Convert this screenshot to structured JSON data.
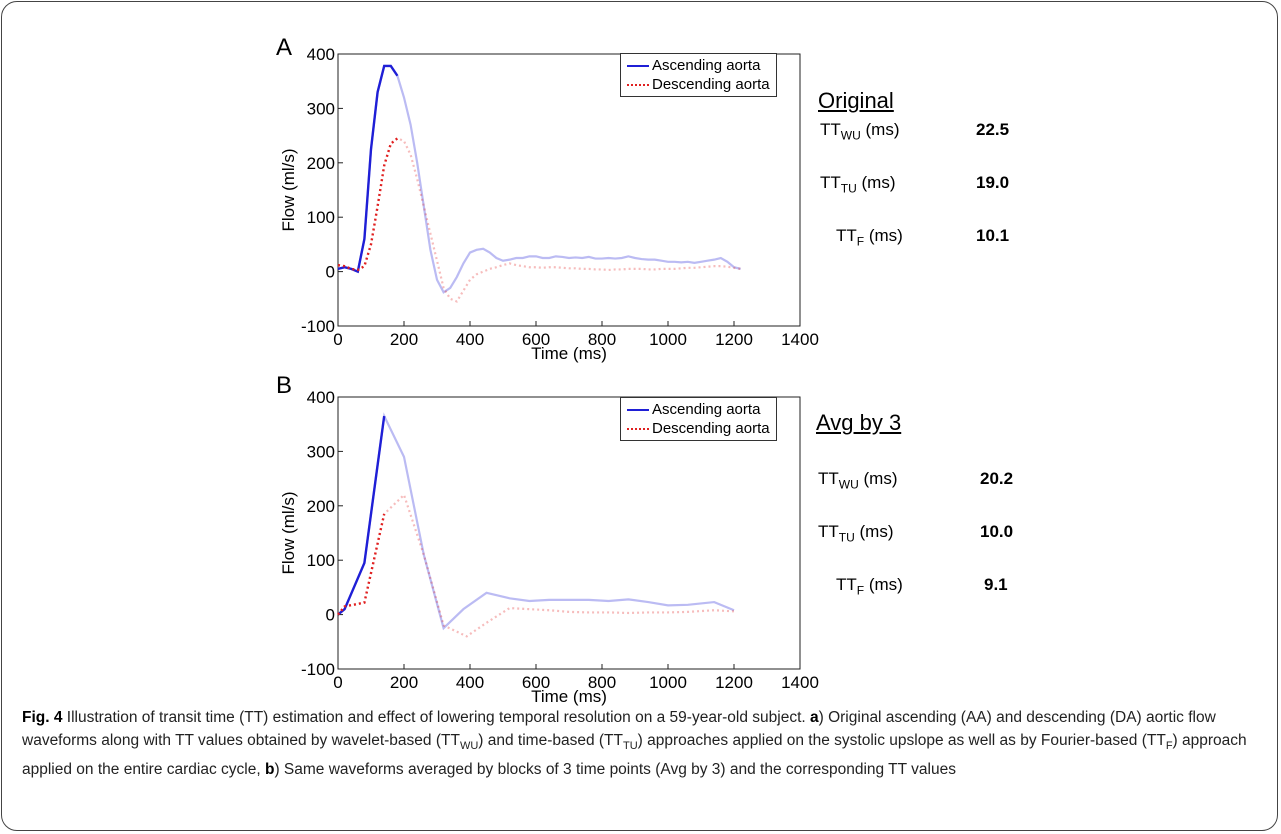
{
  "panels": [
    {
      "letter": "A",
      "heading": "Original",
      "tt": [
        {
          "base": "TT",
          "sub": "WU",
          "unit": " (ms)",
          "value": "22.5"
        },
        {
          "base": "TT",
          "sub": "TU",
          "unit": " (ms)",
          "value": "19.0"
        },
        {
          "base": "TT",
          "sub": "F",
          "unit": " (ms)",
          "value": "10.1"
        }
      ]
    },
    {
      "letter": "B",
      "heading": "Avg by 3",
      "tt": [
        {
          "base": "TT",
          "sub": "WU",
          "unit": " (ms)",
          "value": "20.2"
        },
        {
          "base": "TT",
          "sub": "TU",
          "unit": " (ms)",
          "value": "10.0"
        },
        {
          "base": "TT",
          "sub": "F",
          "unit": " (ms)",
          "value": "9.1"
        }
      ]
    }
  ],
  "chart_data": [
    {
      "type": "line",
      "xlabel": "Time (ms)",
      "ylabel": "Flow (ml/s)",
      "xlim": [
        0,
        1400
      ],
      "ylim": [
        -100,
        400
      ],
      "xticks": [
        0,
        200,
        400,
        600,
        800,
        1000,
        1200,
        1400
      ],
      "yticks": [
        -100,
        0,
        100,
        200,
        300,
        400
      ],
      "legend_position": "top-right",
      "series": [
        {
          "name": "Ascending aorta",
          "color": "#1f1fd6",
          "style": "solid",
          "highlight_until": 190,
          "x": [
            0,
            20,
            40,
            60,
            80,
            100,
            120,
            140,
            160,
            180,
            200,
            220,
            240,
            260,
            280,
            300,
            320,
            340,
            360,
            380,
            400,
            420,
            440,
            460,
            480,
            500,
            520,
            540,
            560,
            580,
            600,
            620,
            640,
            660,
            680,
            700,
            720,
            740,
            760,
            780,
            800,
            820,
            840,
            860,
            880,
            900,
            920,
            940,
            960,
            980,
            1000,
            1020,
            1040,
            1060,
            1080,
            1100,
            1120,
            1140,
            1160,
            1180,
            1200,
            1220
          ],
          "y": [
            5,
            8,
            5,
            0,
            60,
            225,
            330,
            378,
            378,
            360,
            320,
            270,
            200,
            120,
            40,
            -15,
            -38,
            -30,
            -10,
            15,
            35,
            40,
            42,
            35,
            25,
            20,
            22,
            25,
            25,
            28,
            28,
            25,
            25,
            28,
            27,
            25,
            26,
            25,
            27,
            24,
            24,
            25,
            24,
            25,
            28,
            25,
            23,
            22,
            22,
            20,
            18,
            18,
            17,
            18,
            16,
            18,
            20,
            22,
            25,
            18,
            8,
            5
          ]
        },
        {
          "name": "Descending aorta",
          "color": "#e02020",
          "style": "dotted",
          "highlight_until": 190,
          "x": [
            0,
            20,
            40,
            60,
            80,
            100,
            120,
            140,
            160,
            180,
            200,
            220,
            240,
            260,
            280,
            300,
            320,
            340,
            360,
            380,
            400,
            420,
            440,
            460,
            480,
            500,
            520,
            540,
            560,
            580,
            600,
            620,
            640,
            660,
            680,
            700,
            720,
            740,
            760,
            780,
            800,
            820,
            840,
            860,
            880,
            900,
            920,
            940,
            960,
            980,
            1000,
            1020,
            1040,
            1060,
            1080,
            1100,
            1120,
            1140,
            1160,
            1180,
            1200,
            1220
          ],
          "y": [
            12,
            10,
            5,
            3,
            10,
            50,
            120,
            195,
            235,
            245,
            240,
            215,
            170,
            120,
            70,
            20,
            -30,
            -50,
            -55,
            -35,
            -15,
            -5,
            0,
            5,
            8,
            12,
            15,
            12,
            10,
            8,
            8,
            7,
            8,
            8,
            7,
            6,
            6,
            5,
            5,
            4,
            4,
            3,
            4,
            4,
            5,
            5,
            5,
            4,
            4,
            5,
            5,
            5,
            6,
            7,
            7,
            8,
            9,
            10,
            10,
            9,
            7,
            5
          ]
        }
      ]
    },
    {
      "type": "line",
      "xlabel": "Time (ms)",
      "ylabel": "Flow (ml/s)",
      "xlim": [
        0,
        1400
      ],
      "ylim": [
        -100,
        400
      ],
      "xticks": [
        0,
        200,
        400,
        600,
        800,
        1000,
        1200,
        1400
      ],
      "yticks": [
        -100,
        0,
        100,
        200,
        300,
        400
      ],
      "legend_position": "top-right",
      "series": [
        {
          "name": "Ascending aorta",
          "color": "#1f1fd6",
          "style": "solid",
          "highlight_until": 140,
          "x": [
            0,
            20,
            80,
            140,
            200,
            260,
            320,
            380,
            450,
            520,
            580,
            640,
            700,
            760,
            820,
            880,
            940,
            1000,
            1060,
            1140,
            1200
          ],
          "y": [
            0,
            10,
            95,
            365,
            290,
            110,
            -25,
            10,
            40,
            30,
            25,
            27,
            27,
            27,
            25,
            28,
            23,
            17,
            18,
            23,
            8
          ]
        },
        {
          "name": "Descending aorta",
          "color": "#e02020",
          "style": "dotted",
          "highlight_until": 140,
          "x": [
            0,
            20,
            80,
            140,
            200,
            260,
            320,
            390,
            450,
            520,
            580,
            640,
            700,
            760,
            820,
            880,
            940,
            1000,
            1060,
            1140,
            1200
          ],
          "y": [
            0,
            15,
            22,
            185,
            220,
            110,
            -20,
            -40,
            -15,
            12,
            10,
            8,
            5,
            4,
            4,
            3,
            4,
            4,
            5,
            8,
            6
          ]
        }
      ]
    }
  ],
  "caption": {
    "fig_label": "Fig. 4",
    "segments": [
      {
        "t": " Illustration of transit time (TT) estimation and effect of lowering temporal resolution on a 59-year-old subject. "
      },
      {
        "b": "a"
      },
      {
        "t": ") Original ascending (AA) and descending (DA) aortic flow waveforms along with TT values obtained by wavelet-based (TT"
      },
      {
        "s": "WU"
      },
      {
        "t": ") and time-based (TT"
      },
      {
        "s": "TU"
      },
      {
        "t": ") approaches applied on the systolic upslope as well as by Fourier-based (TT"
      },
      {
        "s": "F"
      },
      {
        "t": ") approach applied on the entire cardiac cycle, "
      },
      {
        "b": "b"
      },
      {
        "t": ") Same waveforms averaged by blocks of 3 time points (Avg by 3) and the corresponding TT values"
      }
    ]
  }
}
